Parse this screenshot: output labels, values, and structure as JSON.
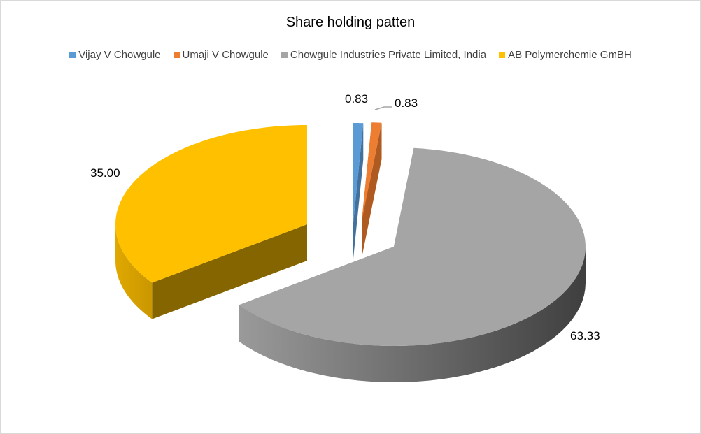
{
  "chart_data": {
    "type": "pie",
    "style": "3d-exploded",
    "title": "Share holding patten",
    "legend_position": "top",
    "series": [
      {
        "name": "Vijay V Chowgule",
        "value": 0.83,
        "label": "0.83",
        "color": "#5b9bd5"
      },
      {
        "name": "Umaji V Chowgule",
        "value": 0.83,
        "label": "0.83",
        "color": "#ed7d31"
      },
      {
        "name": "Chowgule Industries Private Limited, India",
        "value": 63.33,
        "label": "63.33",
        "color": "#a5a5a5"
      },
      {
        "name": "AB Polymerchemie GmBH",
        "value": 35.0,
        "label": "35.00",
        "color": "#ffc000"
      }
    ]
  }
}
